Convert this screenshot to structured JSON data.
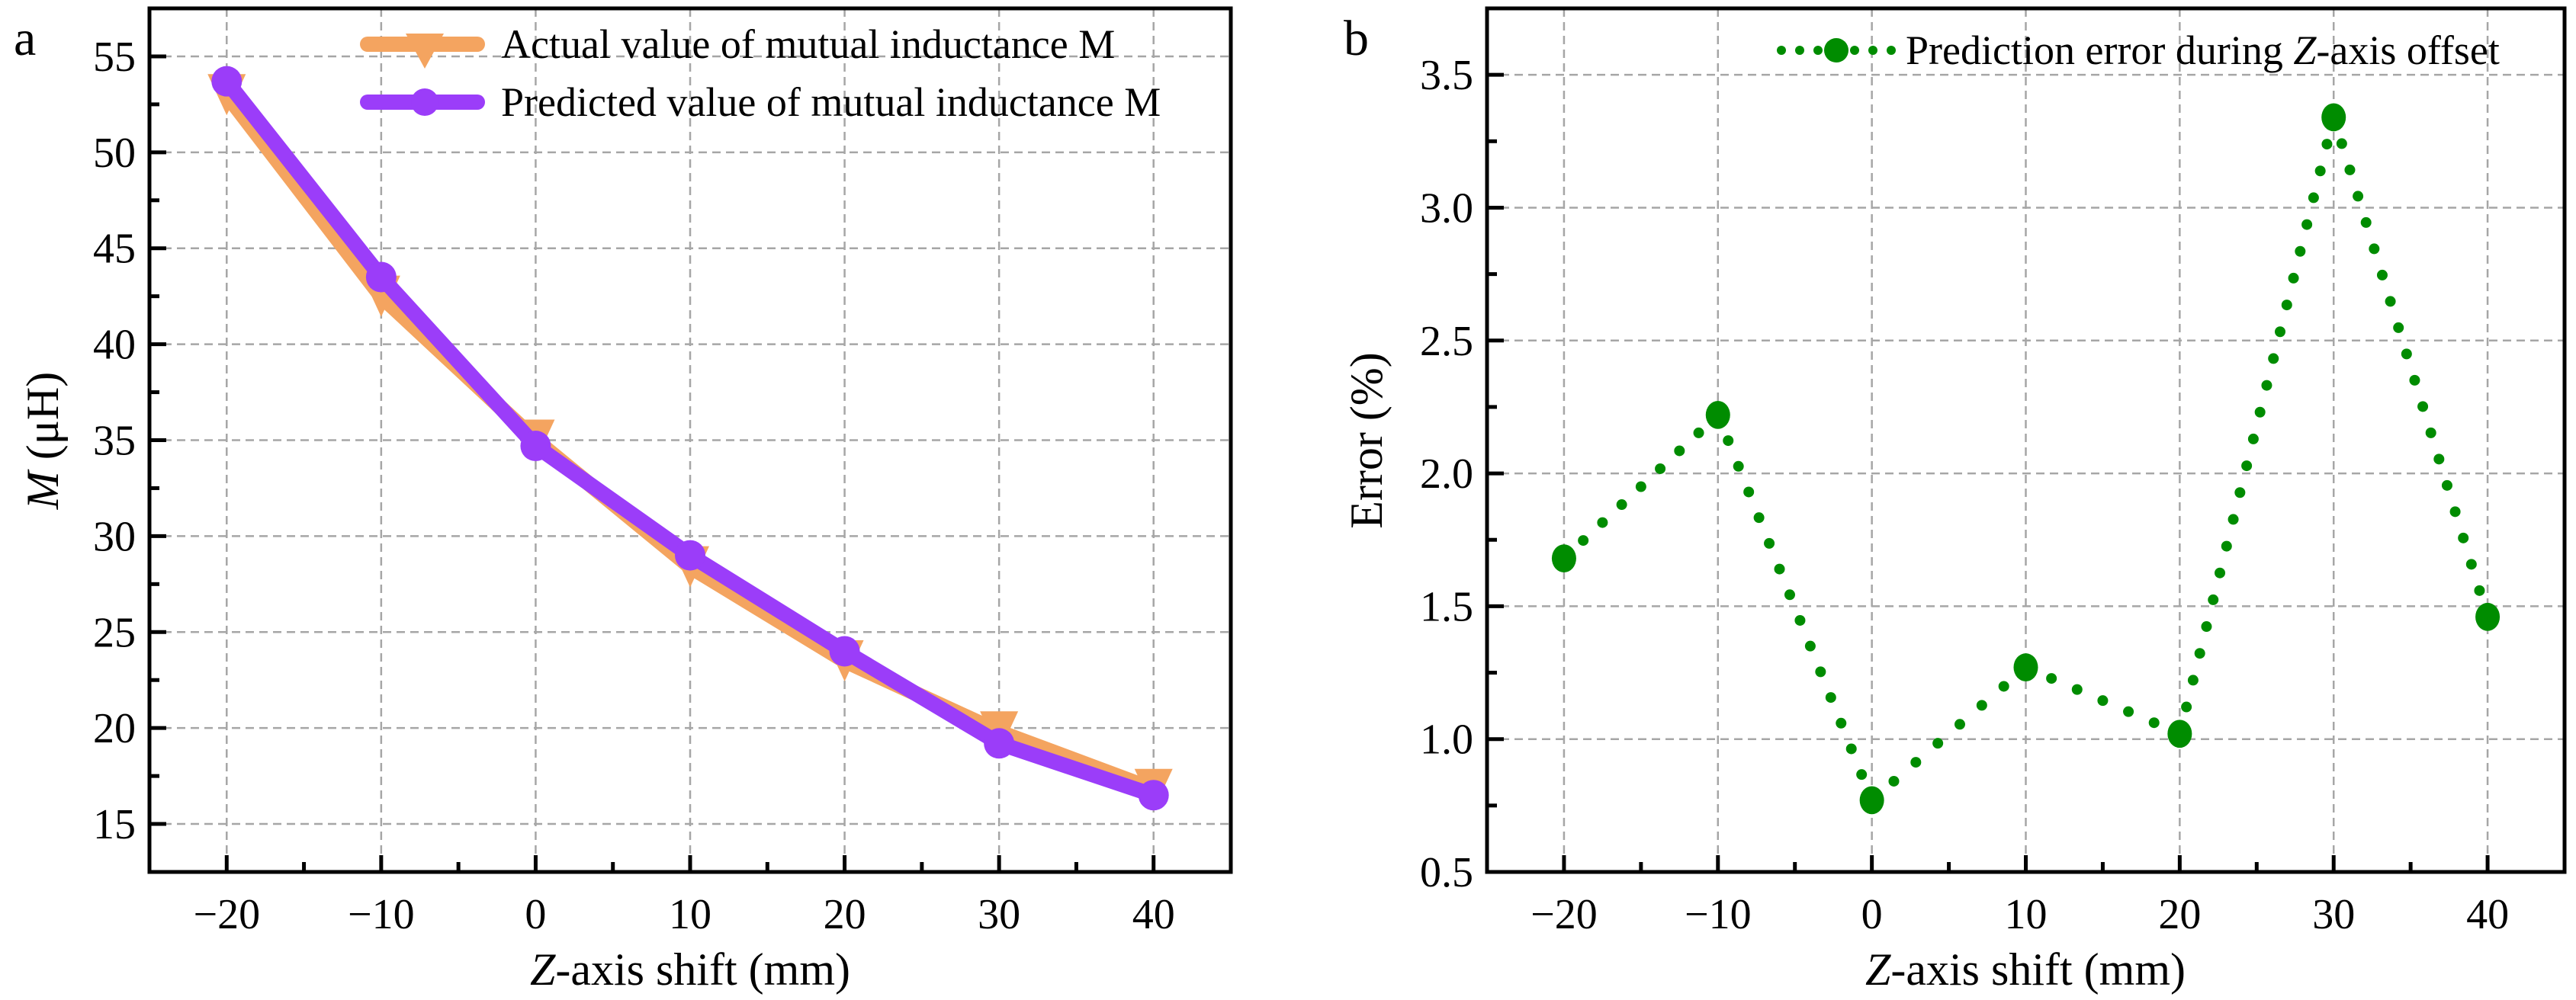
{
  "chart_data": [
    {
      "panel": "a",
      "type": "line",
      "title": "",
      "xlabel_italic": "Z",
      "xlabel_rest": "-axis shift (mm)",
      "ylabel_italic": "M",
      "ylabel_rest": " (μH)",
      "x": [
        -20,
        -10,
        0,
        10,
        20,
        30,
        40
      ],
      "xlim": [
        -25,
        45
      ],
      "ylim": [
        12.5,
        57.5
      ],
      "xticks": [
        -20,
        -10,
        0,
        10,
        20,
        30,
        40
      ],
      "xtick_labels": [
        "−20",
        "−10",
        "0",
        "10",
        "20",
        "30",
        "40"
      ],
      "xminor_step": 5,
      "yticks": [
        15,
        20,
        25,
        30,
        35,
        40,
        45,
        50,
        55
      ],
      "ytick_labels": [
        "15",
        "20",
        "25",
        "30",
        "35",
        "40",
        "45",
        "50",
        "55"
      ],
      "yminor_step": 2.5,
      "grid": true,
      "legend_position": "top-right",
      "series": [
        {
          "name": "Actual value of mutual inductance M",
          "marker": "triangle-down",
          "color": "#F4A460",
          "values": [
            53.0,
            42.5,
            35.0,
            28.4,
            23.5,
            19.8,
            16.8
          ]
        },
        {
          "name": "Predicted value of mutual inductance M",
          "marker": "circle",
          "color": "#9B3DF9",
          "values": [
            53.7,
            43.5,
            34.7,
            29.0,
            24.0,
            19.2,
            16.5
          ]
        }
      ]
    },
    {
      "panel": "b",
      "type": "line",
      "title": "",
      "xlabel_italic": "Z",
      "xlabel_rest": "-axis shift (mm)",
      "ylabel": "Error (%)",
      "x": [
        -20,
        -10,
        0,
        10,
        20,
        30,
        40
      ],
      "xlim": [
        -25,
        45
      ],
      "ylim": [
        0.5,
        3.75
      ],
      "xticks": [
        -20,
        -10,
        0,
        10,
        20,
        30,
        40
      ],
      "xtick_labels": [
        "−20",
        "−10",
        "0",
        "10",
        "20",
        "30",
        "40"
      ],
      "xminor_step": 5,
      "yticks": [
        0.5,
        1.0,
        1.5,
        2.0,
        2.5,
        3.0,
        3.5
      ],
      "ytick_labels": [
        "0.5",
        "1.0",
        "1.5",
        "2.0",
        "2.5",
        "3.0",
        "3.5"
      ],
      "yminor_step": 0.25,
      "grid": true,
      "legend_position": "top-right",
      "series": [
        {
          "name_prefix": "Prediction error during ",
          "name_italic": "Z",
          "name_suffix": "-axis offset",
          "marker": "circle",
          "linestyle": "dotted",
          "color": "#008C00",
          "values": [
            1.68,
            2.22,
            0.77,
            1.27,
            1.02,
            3.34,
            1.46
          ]
        }
      ]
    }
  ],
  "panels": {
    "a_label": "a",
    "b_label": "b"
  }
}
